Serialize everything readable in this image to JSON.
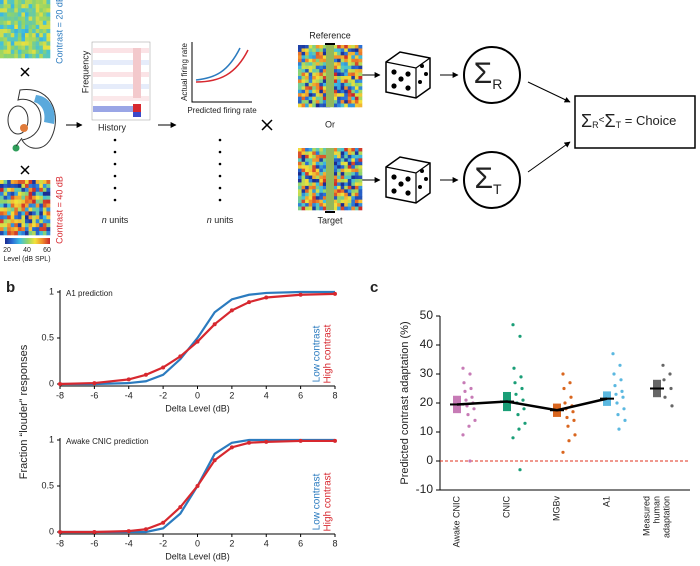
{
  "panel_labels": [
    "a",
    "b",
    "c"
  ],
  "diagram": {
    "contrast_low": "Contrast = 20 dB",
    "contrast_high": "Contrast = 40 dB",
    "colorbar_ticks": [
      "20",
      "40",
      "60"
    ],
    "colorbar_label": "Level (dB SPL)",
    "strf_y": "Frequency",
    "strf_x": "History",
    "nl_y": "Actual firing rate",
    "nl_x": "Predicted firing rate",
    "units_n": "n",
    "units_word": " units",
    "reference": "Reference",
    "or": "Or",
    "target": "Target",
    "sum": "Σ",
    "sub_r": "R",
    "sub_t": "T",
    "less": "<",
    "choice": " = Choice"
  },
  "chart_data": [
    {
      "type": "line",
      "title": "A1 prediction",
      "ylabel": "Fraction “louder” responses",
      "xlabel": "Delta Level (dB)",
      "x": [
        -8,
        -6,
        -4,
        -3,
        -2,
        -1,
        0,
        1,
        2,
        3,
        4,
        6,
        8
      ],
      "series": [
        {
          "name": "Low contrast",
          "color": "#2b7bbf",
          "markers": false,
          "values": [
            0,
            0,
            0.01,
            0.03,
            0.1,
            0.27,
            0.5,
            0.78,
            0.92,
            0.97,
            0.99,
            1,
            1
          ]
        },
        {
          "name": "High contrast",
          "color": "#d7282f",
          "markers": true,
          "values": [
            0,
            0.01,
            0.05,
            0.1,
            0.18,
            0.3,
            0.46,
            0.65,
            0.8,
            0.89,
            0.94,
            0.97,
            0.98
          ]
        }
      ],
      "xlim": [
        -8,
        8
      ],
      "ylim": [
        0,
        1
      ],
      "xticks": [
        -8,
        -6,
        -4,
        -2,
        0,
        2,
        4,
        6,
        8
      ],
      "yticks": [
        0,
        0.5,
        1
      ]
    },
    {
      "type": "line",
      "title": "Awake CNIC prediction",
      "xlabel": "Delta Level (dB)",
      "x": [
        -8,
        -6,
        -4,
        -3,
        -2,
        -1,
        0,
        1,
        2,
        3,
        4,
        6,
        8
      ],
      "series": [
        {
          "name": "Low contrast",
          "color": "#2b7bbf",
          "markers": false,
          "values": [
            0,
            0,
            0,
            0,
            0.04,
            0.2,
            0.5,
            0.85,
            0.97,
            1,
            1,
            1,
            1
          ]
        },
        {
          "name": "High contrast",
          "color": "#d7282f",
          "markers": true,
          "values": [
            0,
            0,
            0.01,
            0.03,
            0.1,
            0.27,
            0.5,
            0.78,
            0.92,
            0.97,
            0.98,
            0.99,
            0.99
          ]
        }
      ],
      "xlim": [
        -8,
        8
      ],
      "ylim": [
        0,
        1
      ],
      "xticks": [
        -8,
        -6,
        -4,
        -2,
        0,
        2,
        4,
        6,
        8
      ],
      "yticks": [
        0,
        0.5,
        1
      ]
    },
    {
      "type": "strip",
      "ylabel": "Predicted contrast adaptation (%)",
      "categories": [
        "Awake CNIC",
        "CNIC",
        "MGBv",
        "A1",
        [
          "Measured",
          "human",
          "adaptation"
        ]
      ],
      "values": [
        19.5,
        20.5,
        17.5,
        21.5,
        25
      ],
      "errors": [
        3,
        3.3,
        2.3,
        2.5,
        3
      ],
      "colors": [
        "#c77bb6",
        "#1a9e77",
        "#d9661f",
        "#5bb8e0",
        "#666666"
      ],
      "points": [
        [
          32,
          30,
          27,
          25,
          24,
          22,
          21,
          20,
          19,
          18,
          16,
          14,
          12,
          9,
          0
        ],
        [
          47,
          43,
          32,
          29,
          27,
          25,
          23,
          21,
          20,
          18,
          16,
          13,
          11,
          8,
          -3
        ],
        [
          30,
          27,
          25,
          22,
          20,
          19,
          18,
          17,
          15,
          14,
          12,
          9,
          7,
          3
        ],
        [
          37,
          33,
          30,
          28,
          26,
          24,
          23,
          22,
          20,
          18,
          16,
          14,
          11
        ],
        [
          33,
          30,
          28,
          25,
          22,
          19
        ]
      ],
      "hline": {
        "value": 0,
        "color": "#e0301e"
      },
      "ylim": [
        -10,
        50
      ],
      "yticks": [
        -10,
        0,
        10,
        20,
        30,
        40,
        50
      ]
    }
  ]
}
